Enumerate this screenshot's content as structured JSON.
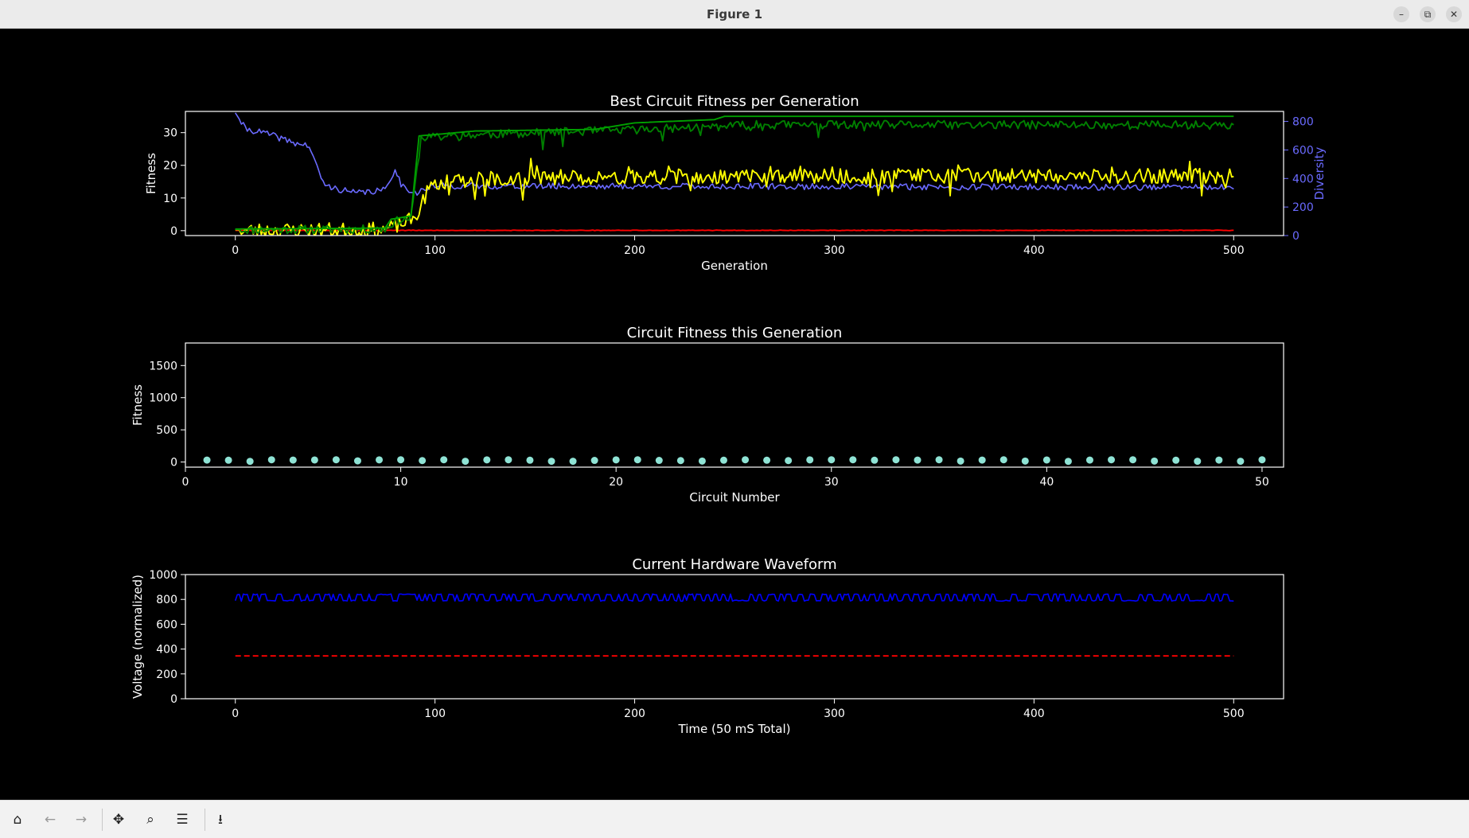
{
  "window": {
    "title": "Figure 1",
    "minimize_icon": "–",
    "restore_icon": "⧉",
    "close_icon": "✕"
  },
  "toolbar": {
    "home_icon": "⌂",
    "back_icon": "←",
    "forward_icon": "→",
    "pan_icon": "✥",
    "zoom_icon": "⌕",
    "configure_icon": "☰",
    "save_icon": "⭳"
  },
  "chart_data": [
    {
      "type": "line",
      "title": "Best Circuit Fitness per Generation",
      "xlabel": "Generation",
      "ylabel": "Fitness",
      "y2label": "Diversity",
      "xlim": [
        -25,
        525
      ],
      "ylim": [
        -1.5,
        36.5
      ],
      "y2lim": [
        0,
        870
      ],
      "xticks": [
        0,
        100,
        200,
        300,
        400,
        500
      ],
      "yticks": [
        0,
        10,
        20,
        30
      ],
      "y2ticks": [
        0,
        200,
        400,
        600,
        800
      ],
      "grid": false,
      "colors": {
        "best": "#00a000",
        "mean": "#008000",
        "median": "#ffff00",
        "low": "#ff0000",
        "diversity": "#6a6aff"
      },
      "series": [
        {
          "key": "best",
          "axis": "left",
          "points": [
            [
              0,
              0.5
            ],
            [
              75,
              0.8
            ],
            [
              78,
              3.5
            ],
            [
              88,
              4.5
            ],
            [
              92,
              29
            ],
            [
              120,
              30.5
            ],
            [
              180,
              31
            ],
            [
              200,
              33
            ],
            [
              240,
              34
            ],
            [
              245,
              35
            ],
            [
              500,
              35
            ]
          ]
        },
        {
          "key": "mean",
          "axis": "left",
          "noise": 1.3,
          "seed": 11,
          "points": [
            [
              0,
              0.4
            ],
            [
              75,
              0.6
            ],
            [
              80,
              3
            ],
            [
              88,
              4
            ],
            [
              93,
              28.5
            ],
            [
              120,
              29.5
            ],
            [
              200,
              31
            ],
            [
              260,
              32.5
            ],
            [
              500,
              32.5
            ]
          ]
        },
        {
          "key": "median",
          "axis": "left",
          "noise": 2.3,
          "seed": 23,
          "points": [
            [
              0,
              0.3
            ],
            [
              75,
              0.5
            ],
            [
              80,
              1.5
            ],
            [
              90,
              4
            ],
            [
              96,
              12
            ],
            [
              100,
              15
            ],
            [
              140,
              16.5
            ],
            [
              300,
              17
            ],
            [
              500,
              17
            ]
          ]
        },
        {
          "key": "low",
          "axis": "left",
          "noise": 0.08,
          "seed": 5,
          "points": [
            [
              0,
              0.1
            ],
            [
              500,
              0.1
            ]
          ]
        },
        {
          "key": "diversity",
          "axis": "right",
          "noise": 22,
          "seed": 41,
          "points": [
            [
              0,
              860
            ],
            [
              5,
              750
            ],
            [
              15,
              720
            ],
            [
              30,
              650
            ],
            [
              37,
              630
            ],
            [
              40,
              510
            ],
            [
              45,
              350
            ],
            [
              60,
              300
            ],
            [
              75,
              320
            ],
            [
              80,
              470
            ],
            [
              83,
              360
            ],
            [
              90,
              300
            ],
            [
              100,
              350
            ],
            [
              500,
              340
            ]
          ]
        }
      ]
    },
    {
      "type": "scatter",
      "title": "Circuit Fitness this Generation",
      "xlabel": "Circuit Number",
      "ylabel": "Fitness",
      "xlim": [
        0,
        51
      ],
      "ylim": [
        -80,
        1850
      ],
      "xticks": [
        0,
        10,
        20,
        30,
        40,
        50
      ],
      "yticks": [
        0,
        500,
        1000,
        1500
      ],
      "grid": false,
      "color": "#8fe3d5",
      "x": [
        1,
        2,
        3,
        4,
        5,
        6,
        7,
        8,
        9,
        10,
        11,
        12,
        13,
        14,
        15,
        16,
        17,
        18,
        19,
        20,
        21,
        22,
        23,
        24,
        25,
        26,
        27,
        28,
        29,
        30,
        31,
        32,
        33,
        34,
        35,
        36,
        37,
        38,
        39,
        40,
        41,
        42,
        43,
        44,
        45,
        46,
        47,
        48,
        49,
        50
      ],
      "y": [
        30,
        28,
        10,
        35,
        30,
        32,
        35,
        18,
        33,
        35,
        22,
        35,
        12,
        33,
        35,
        28,
        12,
        12,
        25,
        33,
        35,
        25,
        22,
        15,
        28,
        35,
        28,
        22,
        33,
        35,
        35,
        28,
        35,
        30,
        35,
        15,
        30,
        35,
        15,
        32,
        10,
        30,
        35,
        35,
        15,
        28,
        12,
        30,
        12,
        35
      ]
    },
    {
      "type": "line",
      "title": "Current Hardware Waveform",
      "xlabel": "Time (50 mS Total)",
      "ylabel": "Voltage (normalized)",
      "xlim": [
        -25,
        525
      ],
      "ylim": [
        0,
        1000
      ],
      "xticks": [
        0,
        100,
        200,
        300,
        400,
        500
      ],
      "yticks": [
        0,
        200,
        400,
        600,
        800,
        1000
      ],
      "grid": false,
      "series": [
        {
          "key": "waveform",
          "color": "#0000ff",
          "style": "solid",
          "low": 790,
          "high": 840,
          "seed": 77,
          "x": [
            0,
            500
          ]
        },
        {
          "key": "threshold",
          "color": "#ff0000",
          "style": "dashed",
          "x": [
            0,
            500
          ],
          "y": [
            345,
            345
          ]
        }
      ]
    }
  ]
}
